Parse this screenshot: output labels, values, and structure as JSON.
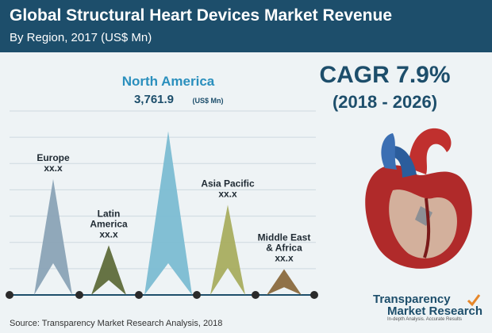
{
  "header": {
    "title": "Global Structural Heart Devices Market Revenue",
    "subtitle": "By Region, 2017 (US$ Mn)"
  },
  "cagr": {
    "label": "CAGR 7.9%",
    "period": "(2018 - 2026)"
  },
  "source": "Source: Transparency Market Research Analysis, 2018",
  "logo": {
    "line1": "Transparency",
    "line2": "Market Research",
    "tagline": "In-depth Analysis. Accurate Results"
  },
  "colors": {
    "header": "#1d4e6b",
    "europe": "#8aa3b6",
    "latin_america": "#5e6b3a",
    "north_america": "#7bbcd2",
    "asia_pacific": "#a8ad5f",
    "middle_east_africa": "#8a6a3e",
    "na_label": "#2a8fbd",
    "axis": "#1d4e6b",
    "node": "#2a2a2a"
  },
  "chart_data": {
    "type": "bar",
    "title": "Global Structural Heart Devices Market Revenue",
    "subtitle": "By Region, 2017 (US$ Mn)",
    "categories": [
      "Europe",
      "Latin America",
      "North America",
      "Asia Pacific",
      "Middle East & Africa"
    ],
    "label_lines": [
      [
        "Europe"
      ],
      [
        "Latin",
        "America"
      ],
      [
        "North America"
      ],
      [
        "Asia Pacific"
      ],
      [
        "Middle East",
        "& Africa"
      ]
    ],
    "value_labels": [
      "xx.x",
      "xx.x",
      "3,761.9",
      "xx.x",
      "xx.x"
    ],
    "unit_label": "(US$ Mn)",
    "relative_heights": [
      0.63,
      0.27,
      0.89,
      0.49,
      0.14
    ],
    "grid": true,
    "legend": "none"
  }
}
